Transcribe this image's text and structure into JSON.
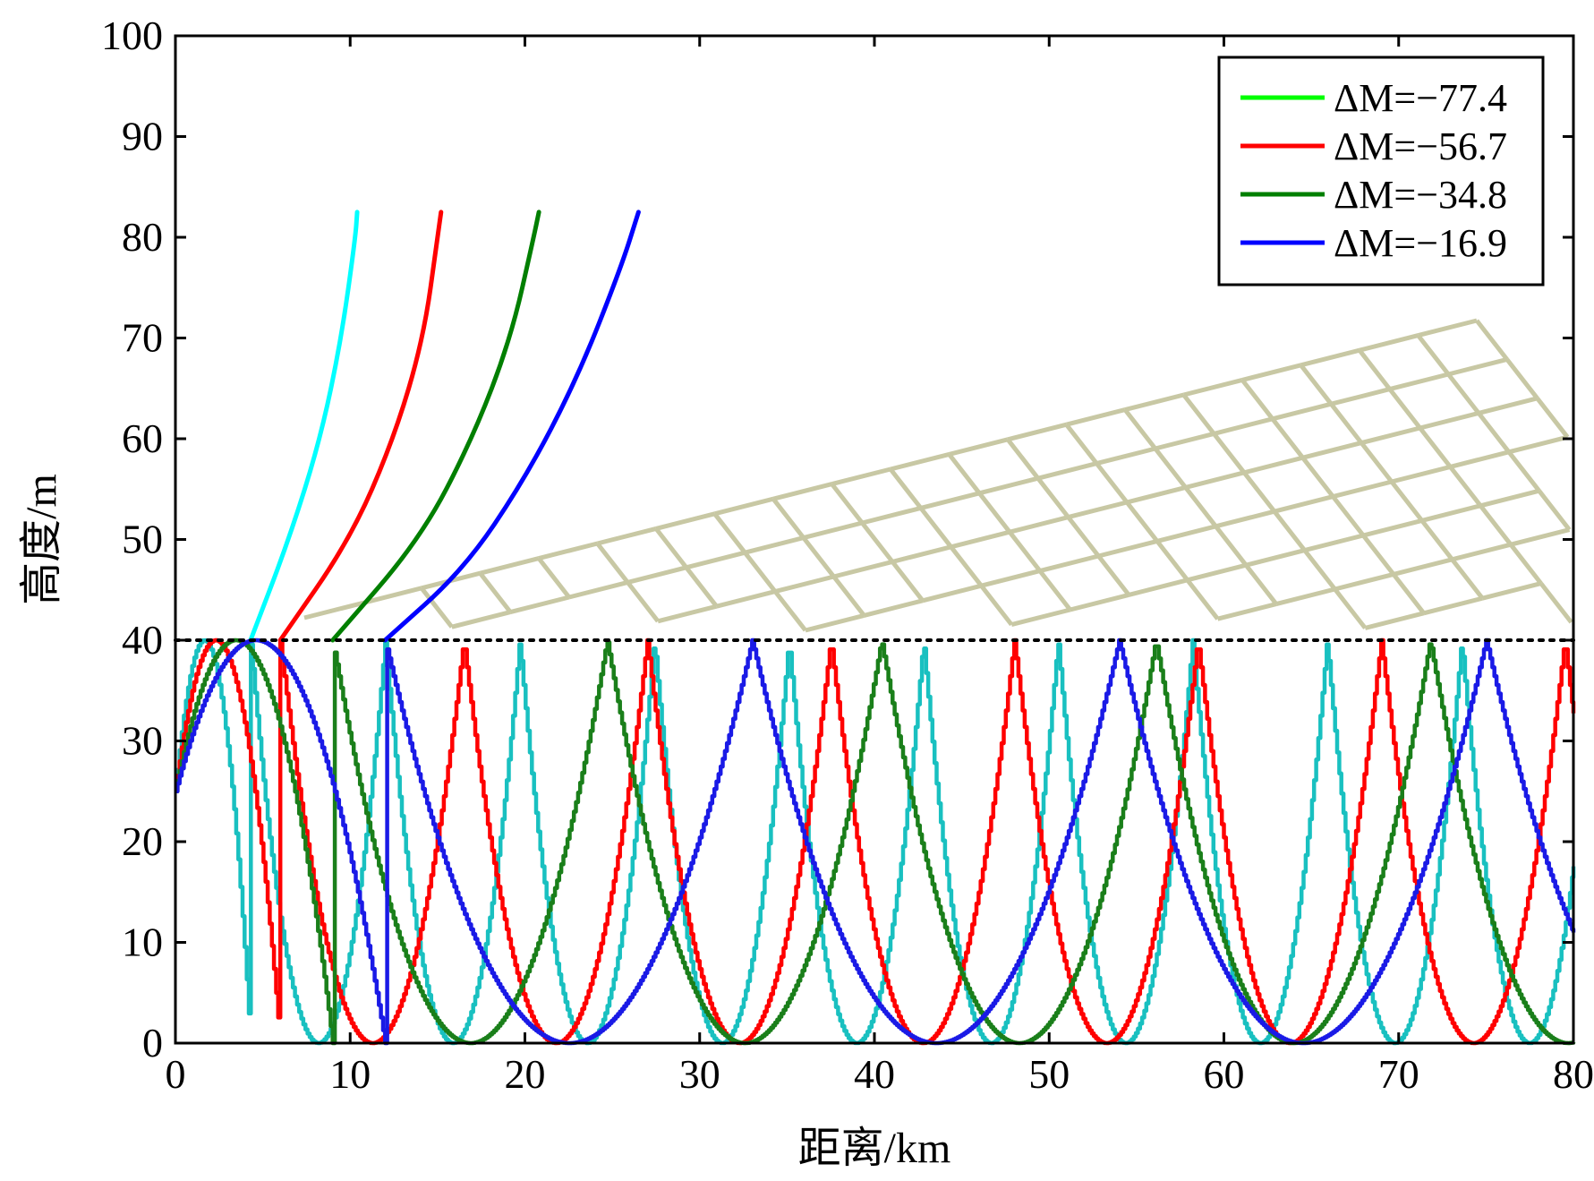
{
  "chart_data": {
    "type": "line",
    "title": "",
    "xlabel": "距离/km",
    "ylabel": "高度/m",
    "xlim": [
      0,
      80
    ],
    "ylim": [
      0,
      100
    ],
    "xticks": [
      "0",
      "10",
      "20",
      "30",
      "40",
      "50",
      "60",
      "70",
      "80"
    ],
    "yticks": [
      "0",
      "10",
      "20",
      "30",
      "40",
      "50",
      "60",
      "70",
      "80",
      "90",
      "100"
    ],
    "grid": false,
    "legend_position": "top-right",
    "duct_top_height": 40,
    "transmitter_height": 25,
    "colors": {
      "grid_overlay": "#c8c8a4",
      "duct_line": "#000000",
      "frame": "#000000"
    },
    "series": [
      {
        "name": "ΔM=−77.4",
        "legend_color": "#00ff00",
        "trapped_color": "#19c0c0",
        "escape_color": "#00ffff",
        "half_period_km": 7.7,
        "first_apex_km": 4.3,
        "escape_path": [
          [
            4.3,
            40
          ],
          [
            6.5,
            50
          ],
          [
            8.3,
            60
          ],
          [
            9.5,
            70
          ],
          [
            10.3,
            80
          ],
          [
            10.4,
            82.5
          ]
        ]
      },
      {
        "name": "ΔM=−56.7",
        "legend_color": "#ff0000",
        "trapped_color": "#ff0000",
        "escape_color": "#ff0000",
        "half_period_km": 10.5,
        "first_apex_km": 6.0,
        "escape_path": [
          [
            6.0,
            40
          ],
          [
            10.0,
            50
          ],
          [
            12.5,
            60
          ],
          [
            14.2,
            70
          ],
          [
            15.0,
            80
          ],
          [
            15.2,
            82.5
          ]
        ]
      },
      {
        "name": "ΔM=−34.8",
        "legend_color": "#007f00",
        "trapped_color": "#1a7f1a",
        "escape_color": "#007f00",
        "half_period_km": 15.7,
        "first_apex_km": 9.0,
        "escape_path": [
          [
            9.0,
            40
          ],
          [
            14.0,
            50
          ],
          [
            17.0,
            60
          ],
          [
            19.2,
            70
          ],
          [
            20.5,
            80
          ],
          [
            20.8,
            82.5
          ]
        ]
      },
      {
        "name": "ΔM=−16.9",
        "legend_color": "#0000ff",
        "trapped_color": "#1a1ae6",
        "escape_color": "#0000ff",
        "half_period_km": 21.0,
        "first_apex_km": 12.0,
        "escape_path": [
          [
            12.0,
            40
          ],
          [
            16.5,
            47
          ],
          [
            20.0,
            56
          ],
          [
            23.0,
            66
          ],
          [
            25.5,
            77
          ],
          [
            26.5,
            82.5
          ]
        ]
      }
    ]
  }
}
